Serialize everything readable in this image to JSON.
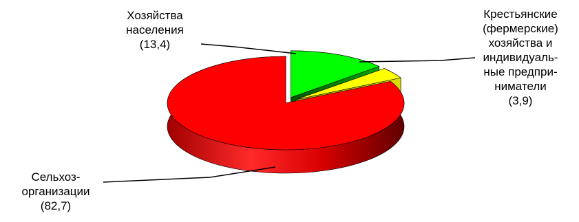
{
  "chart_data": {
    "type": "pie",
    "title": "",
    "slices": [
      {
        "lines": [
          "Сельхоз-",
          "организации",
          "(82,7)"
        ],
        "value": 82.7,
        "color": "#ff0000",
        "exploded": false
      },
      {
        "lines": [
          "Хозяйства",
          "населения",
          "(13,4)"
        ],
        "value": 13.4,
        "color": "#00ff00",
        "exploded": true
      },
      {
        "lines": [
          "Крестьянские",
          "(фермерские)",
          "хозяйства и",
          "индивидуаль-",
          "ные предпри-",
          "ниматели",
          "(3,9)"
        ],
        "value": 3.9,
        "color": "#ffff00",
        "exploded": true
      }
    ],
    "legend": "none"
  }
}
